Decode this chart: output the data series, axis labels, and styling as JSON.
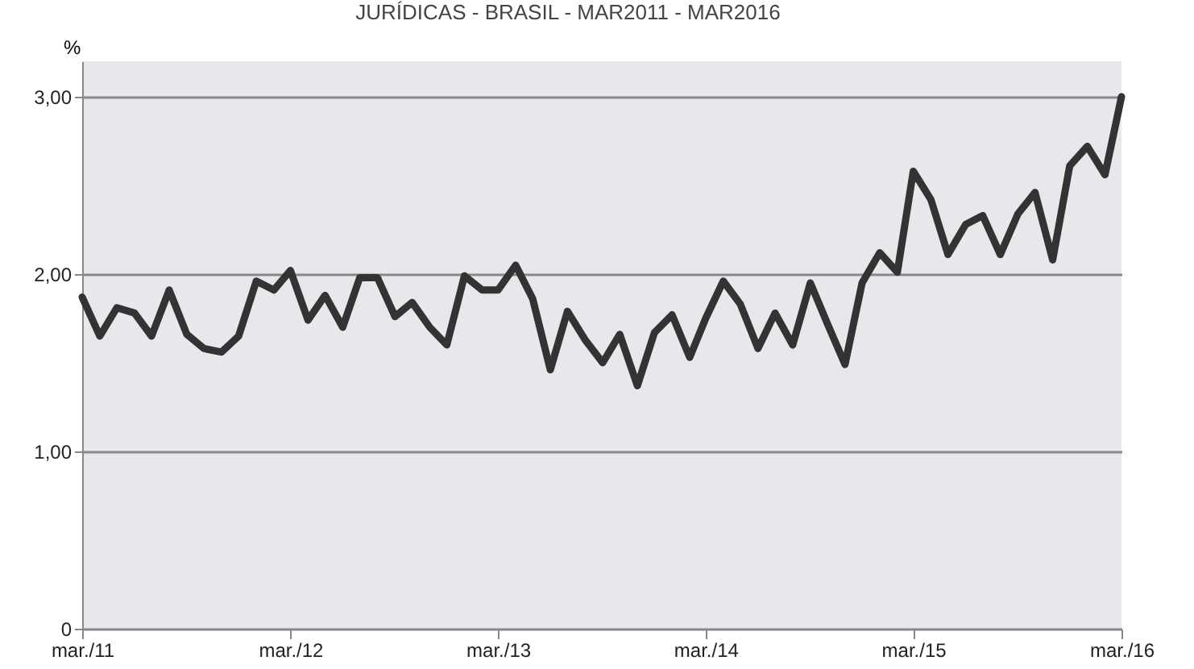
{
  "chart_data": {
    "type": "line",
    "title": "JURÍDICAS - BRASIL - MAR2011 - MAR2016",
    "ylabel": "%",
    "x": [
      "2011-03",
      "2011-04",
      "2011-05",
      "2011-06",
      "2011-07",
      "2011-08",
      "2011-09",
      "2011-10",
      "2011-11",
      "2011-12",
      "2012-01",
      "2012-02",
      "2012-03",
      "2012-04",
      "2012-05",
      "2012-06",
      "2012-07",
      "2012-08",
      "2012-09",
      "2012-10",
      "2012-11",
      "2012-12",
      "2013-01",
      "2013-02",
      "2013-03",
      "2013-04",
      "2013-05",
      "2013-06",
      "2013-07",
      "2013-08",
      "2013-09",
      "2013-10",
      "2013-11",
      "2013-12",
      "2014-01",
      "2014-02",
      "2014-03",
      "2014-04",
      "2014-05",
      "2014-06",
      "2014-07",
      "2014-08",
      "2014-09",
      "2014-10",
      "2014-11",
      "2014-12",
      "2015-01",
      "2015-02",
      "2015-03",
      "2015-04",
      "2015-05",
      "2015-06",
      "2015-07",
      "2015-08",
      "2015-09",
      "2015-10",
      "2015-11",
      "2015-12",
      "2016-01",
      "2016-02",
      "2016-03"
    ],
    "series": [
      {
        "color": "#333333",
        "values": [
          1.87,
          1.65,
          1.81,
          1.78,
          1.65,
          1.91,
          1.66,
          1.58,
          1.56,
          1.65,
          1.96,
          1.91,
          2.02,
          1.74,
          1.88,
          1.7,
          1.98,
          1.98,
          1.76,
          1.84,
          1.7,
          1.6,
          1.99,
          1.91,
          1.91,
          2.05,
          1.86,
          1.46,
          1.79,
          1.63,
          1.5,
          1.66,
          1.37,
          1.67,
          1.77,
          1.53,
          1.75,
          1.96,
          1.83,
          1.58,
          1.78,
          1.6,
          1.95,
          1.72,
          1.49,
          1.95,
          2.12,
          2.01,
          2.58,
          2.42,
          2.11,
          2.28,
          2.33,
          2.11,
          2.34,
          2.46,
          2.08,
          2.61,
          2.72,
          2.56,
          3.0
        ]
      }
    ],
    "xlim": [
      "2011-03",
      "2016-03"
    ],
    "xticks": [
      {
        "value": "2011-03",
        "label": "mar./11"
      },
      {
        "value": "2012-03",
        "label": "mar./12"
      },
      {
        "value": "2013-03",
        "label": "mar./13"
      },
      {
        "value": "2014-03",
        "label": "mar./14"
      },
      {
        "value": "2015-03",
        "label": "mar./15"
      },
      {
        "value": "2016-03",
        "label": "mar./16"
      }
    ],
    "ylim": [
      0,
      3.2
    ],
    "yticks": [
      0,
      {
        "value": 1,
        "label": "1,00"
      },
      {
        "value": 2,
        "label": "2,00"
      },
      {
        "value": 3,
        "label": "3,00"
      }
    ],
    "grid": "y",
    "marker": "none",
    "line_style": "solid"
  }
}
